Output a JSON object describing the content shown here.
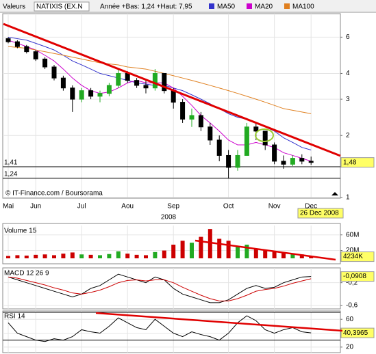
{
  "header": {
    "field": "Valeurs",
    "stock": "NATIXIS (EX.N",
    "range": "Année +Bas: 1,24 +Haut: 7,95"
  },
  "chart_data": [
    {
      "type": "candlestick",
      "log": true,
      "source": "© IT-Finance.com / Boursorama",
      "year": "2008",
      "date_label": "26 Dec 2008",
      "categories": [
        "Mai",
        null,
        null,
        "Jun",
        null,
        null,
        null,
        null,
        "Jul",
        null,
        null,
        null,
        null,
        "Aou",
        null,
        null,
        null,
        null,
        "Sep",
        null,
        null,
        null,
        null,
        null,
        "Oct",
        null,
        null,
        null,
        null,
        "Nov",
        null,
        null,
        null,
        "Dec"
      ],
      "candles": {
        "open": [
          5.9,
          5.7,
          5.4,
          5.1,
          4.7,
          4.3,
          3.8,
          3.4,
          3.0,
          3.3,
          3.1,
          3.2,
          3.5,
          4.0,
          3.7,
          3.5,
          3.4,
          4.0,
          3.3,
          2.9,
          2.4,
          2.5,
          2.2,
          1.9,
          1.6,
          1.4,
          1.6,
          2.2,
          2.1,
          1.8,
          1.5,
          1.45,
          1.55,
          1.5
        ],
        "high": [
          6.0,
          5.8,
          5.5,
          5.2,
          4.8,
          4.4,
          3.9,
          3.5,
          3.4,
          3.4,
          3.3,
          3.6,
          4.2,
          4.1,
          3.8,
          3.7,
          4.2,
          4.0,
          3.4,
          3.0,
          2.7,
          2.6,
          2.3,
          2.0,
          1.7,
          1.7,
          2.3,
          2.3,
          2.1,
          1.85,
          1.6,
          1.6,
          1.62,
          1.58
        ],
        "low": [
          5.6,
          5.3,
          5.0,
          4.6,
          4.2,
          3.7,
          3.3,
          2.6,
          2.9,
          3.0,
          2.9,
          3.1,
          3.4,
          3.6,
          3.4,
          3.2,
          3.3,
          3.2,
          2.7,
          2.3,
          2.2,
          2.1,
          1.8,
          1.5,
          1.24,
          1.35,
          1.6,
          1.9,
          1.7,
          1.45,
          1.38,
          1.42,
          1.45,
          1.44
        ],
        "close": [
          5.7,
          5.4,
          5.1,
          4.7,
          4.3,
          3.8,
          3.4,
          3.0,
          3.3,
          3.1,
          3.2,
          3.5,
          4.0,
          3.7,
          3.5,
          3.4,
          4.0,
          3.3,
          2.9,
          2.4,
          2.5,
          2.2,
          1.9,
          1.6,
          1.4,
          1.6,
          2.2,
          2.1,
          1.8,
          1.5,
          1.45,
          1.55,
          1.5,
          1.48
        ],
        "value_labels": [
          null,
          null,
          null,
          null,
          null,
          null,
          null,
          null,
          null,
          null,
          null,
          null,
          null,
          null,
          null,
          null,
          null,
          null,
          null,
          null,
          null,
          null,
          null,
          null,
          null,
          null,
          null,
          null,
          null,
          null,
          null,
          null,
          null,
          "1,48"
        ],
        "up_color": "#22aa22",
        "down_color": "#000000"
      },
      "series": [
        {
          "name": "MA50",
          "color": "#3333cc",
          "values": [
            6.0,
            5.9,
            5.8,
            5.6,
            5.4,
            5.2,
            4.9,
            4.6,
            4.4,
            4.2,
            4.0,
            3.9,
            3.8,
            3.7,
            3.6,
            3.55,
            3.5,
            3.5,
            3.4,
            3.3,
            3.15,
            3.0,
            2.85,
            2.7,
            2.55,
            2.45,
            2.4,
            2.3,
            2.2,
            2.1,
            1.95,
            1.85,
            1.75,
            1.7
          ]
        },
        {
          "name": "MA20",
          "color": "#cc00cc",
          "values": [
            5.8,
            5.6,
            5.4,
            5.2,
            4.9,
            4.6,
            4.2,
            3.8,
            3.5,
            3.3,
            3.2,
            3.25,
            3.4,
            3.6,
            3.7,
            3.6,
            3.6,
            3.6,
            3.4,
            3.1,
            2.8,
            2.5,
            2.3,
            2.1,
            1.9,
            1.8,
            1.8,
            1.85,
            1.8,
            1.75,
            1.65,
            1.6,
            1.55,
            1.5
          ]
        },
        {
          "name": "MA100",
          "color": "#e08020",
          "values": [
            5.4,
            5.35,
            5.3,
            5.2,
            5.1,
            5.0,
            4.9,
            4.8,
            4.7,
            4.6,
            4.5,
            4.45,
            4.4,
            4.3,
            4.25,
            4.2,
            4.1,
            4.0,
            3.9,
            3.8,
            3.7,
            3.6,
            3.5,
            3.4,
            3.3,
            3.2,
            3.1,
            3.0,
            2.9,
            2.8,
            2.7,
            2.65,
            2.6,
            2.55
          ]
        }
      ],
      "hlines": [
        {
          "value": 1.41,
          "label": "1,41"
        },
        {
          "value": 1.24,
          "label": "1,24"
        }
      ],
      "ylim": [
        1,
        7.8
      ],
      "yticks": [
        1,
        2,
        3,
        4,
        6
      ],
      "grid": true
    },
    {
      "type": "bar",
      "title": "Volume 15",
      "up_color": "#22aa22",
      "down_color": "#cc0000",
      "values": [
        6,
        8,
        7,
        9,
        10,
        8,
        12,
        15,
        10,
        9,
        8,
        11,
        18,
        12,
        9,
        8,
        16,
        20,
        35,
        45,
        40,
        55,
        75,
        50,
        45,
        30,
        35,
        25,
        20,
        18,
        15,
        12,
        10,
        4.234
      ],
      "value_labels": [
        null,
        null,
        null,
        null,
        null,
        null,
        null,
        null,
        null,
        null,
        null,
        null,
        null,
        null,
        null,
        null,
        null,
        null,
        null,
        null,
        null,
        null,
        null,
        null,
        null,
        null,
        null,
        null,
        null,
        null,
        null,
        null,
        null,
        "4234K"
      ],
      "ylim": [
        0,
        84
      ],
      "yticks": [
        {
          "value": 60,
          "label": "60M"
        },
        {
          "value": 20,
          "label": "20M"
        }
      ],
      "grid": true
    },
    {
      "type": "line",
      "title": "MACD 12 26 9",
      "series": [
        {
          "color": "#000000",
          "values": [
            -0.1,
            -0.15,
            -0.2,
            -0.25,
            -0.3,
            -0.35,
            -0.4,
            -0.45,
            -0.4,
            -0.3,
            -0.25,
            -0.15,
            -0.05,
            -0.1,
            -0.15,
            -0.2,
            -0.1,
            -0.15,
            -0.3,
            -0.4,
            -0.45,
            -0.5,
            -0.55,
            -0.55,
            -0.5,
            -0.4,
            -0.3,
            -0.25,
            -0.3,
            -0.28,
            -0.2,
            -0.15,
            -0.1,
            -0.0908
          ],
          "value_labels": [
            null,
            null,
            null,
            null,
            null,
            null,
            null,
            null,
            null,
            null,
            null,
            null,
            null,
            null,
            null,
            null,
            null,
            null,
            null,
            null,
            null,
            null,
            null,
            null,
            null,
            null,
            null,
            null,
            null,
            null,
            null,
            null,
            null,
            "-0,0908"
          ]
        },
        {
          "color": "#cc0000",
          "values": [
            -0.1,
            -0.12,
            -0.16,
            -0.2,
            -0.24,
            -0.29,
            -0.33,
            -0.38,
            -0.4,
            -0.37,
            -0.33,
            -0.27,
            -0.2,
            -0.16,
            -0.15,
            -0.17,
            -0.15,
            -0.15,
            -0.2,
            -0.28,
            -0.35,
            -0.42,
            -0.48,
            -0.52,
            -0.52,
            -0.48,
            -0.42,
            -0.35,
            -0.32,
            -0.3,
            -0.26,
            -0.21,
            -0.17,
            -0.13
          ]
        }
      ],
      "ylim": [
        -0.66,
        0.06
      ],
      "yticks": [
        {
          "value": -0.2,
          "label": "-0,2"
        },
        {
          "value": -0.6,
          "label": "-0,6"
        }
      ],
      "grid": true
    },
    {
      "type": "line",
      "title": "RSI 14",
      "series": [
        {
          "color": "#000000",
          "values": [
            55,
            40,
            35,
            30,
            28,
            32,
            30,
            35,
            45,
            42,
            40,
            50,
            62,
            55,
            48,
            45,
            60,
            50,
            40,
            35,
            42,
            38,
            35,
            30,
            40,
            55,
            65,
            58,
            45,
            40,
            45,
            48,
            42,
            40.3965
          ],
          "value_labels": [
            null,
            null,
            null,
            null,
            null,
            null,
            null,
            null,
            null,
            null,
            null,
            null,
            null,
            null,
            null,
            null,
            null,
            null,
            null,
            null,
            null,
            null,
            null,
            null,
            null,
            null,
            null,
            null,
            null,
            null,
            null,
            null,
            null,
            "40,3965"
          ]
        }
      ],
      "hlines": [
        70,
        30
      ],
      "ylim": [
        12,
        72
      ],
      "yticks": [
        60,
        40,
        20
      ],
      "grid": true
    }
  ]
}
